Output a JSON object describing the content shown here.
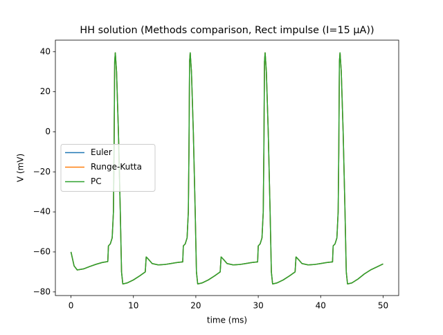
{
  "chart_data": {
    "type": "line",
    "title": "HH solution (Methods comparison, Rect impulse (I=15 μA))",
    "x_label": "time (ms)",
    "y_label": "V (mV)",
    "x": [
      0,
      0.5,
      1,
      2,
      3,
      4,
      5,
      5.9,
      6,
      6.3,
      6.6,
      6.8,
      6.9,
      7,
      7.1,
      7.3,
      7.6,
      7.9,
      8.1,
      8.3,
      9,
      10,
      11,
      11.9,
      12.05,
      12.5,
      13,
      14,
      15,
      16,
      17,
      17.9,
      18,
      18.3,
      18.6,
      18.8,
      18.9,
      19,
      19.1,
      19.3,
      19.6,
      19.9,
      20.1,
      20.3,
      21,
      22,
      23,
      23.9,
      24.05,
      24.5,
      25,
      26,
      27,
      28,
      29,
      29.9,
      30,
      30.3,
      30.6,
      30.8,
      30.9,
      31,
      31.1,
      31.3,
      31.6,
      31.9,
      32.1,
      32.3,
      33,
      34,
      35,
      35.9,
      36.05,
      36.5,
      37,
      38,
      39,
      40,
      41,
      41.9,
      42,
      42.3,
      42.6,
      42.8,
      42.9,
      43,
      43.1,
      43.3,
      43.6,
      43.9,
      44.1,
      44.3,
      45,
      46,
      47,
      48,
      49,
      50
    ],
    "series": [
      {
        "name": "Euler",
        "color": "#1f77b4",
        "values": [
          -60,
          -67,
          -69,
          -68.5,
          -67.3,
          -66.2,
          -65.3,
          -64.8,
          -57,
          -56,
          -53,
          -40,
          -10,
          35,
          39.5,
          30,
          0,
          -40,
          -70,
          -76,
          -75.5,
          -74,
          -72,
          -70,
          -62.5,
          -64,
          -65.8,
          -66.5,
          -66.3,
          -65.8,
          -65.3,
          -65,
          -57,
          -56,
          -53,
          -40,
          -10,
          35,
          39.5,
          30,
          0,
          -40,
          -70,
          -76,
          -75.5,
          -74,
          -72,
          -70,
          -62.5,
          -64,
          -65.8,
          -66.5,
          -66.3,
          -65.8,
          -65.3,
          -65,
          -57,
          -56,
          -53,
          -40,
          -10,
          35,
          39.5,
          30,
          0,
          -40,
          -70,
          -76,
          -75.5,
          -74,
          -72,
          -70,
          -62.5,
          -64,
          -65.8,
          -66.5,
          -66.3,
          -65.8,
          -65.3,
          -65,
          -57,
          -56,
          -53,
          -40,
          -10,
          35,
          39.5,
          30,
          0,
          -40,
          -70,
          -76,
          -75.5,
          -73.5,
          -71,
          -69,
          -67.5,
          -66
        ]
      },
      {
        "name": "Runge-Kutta",
        "color": "#ff7f0e",
        "values": [
          -60,
          -67,
          -69,
          -68.5,
          -67.3,
          -66.2,
          -65.3,
          -64.8,
          -57,
          -56,
          -53,
          -40,
          -10,
          35,
          39.5,
          30,
          0,
          -40,
          -70,
          -76,
          -75.5,
          -74,
          -72,
          -70,
          -62.5,
          -64,
          -65.8,
          -66.5,
          -66.3,
          -65.8,
          -65.3,
          -65,
          -57,
          -56,
          -53,
          -40,
          -10,
          35,
          39.5,
          30,
          0,
          -40,
          -70,
          -76,
          -75.5,
          -74,
          -72,
          -70,
          -62.5,
          -64,
          -65.8,
          -66.5,
          -66.3,
          -65.8,
          -65.3,
          -65,
          -57,
          -56,
          -53,
          -40,
          -10,
          35,
          39.5,
          30,
          0,
          -40,
          -70,
          -76,
          -75.5,
          -74,
          -72,
          -70,
          -62.5,
          -64,
          -65.8,
          -66.5,
          -66.3,
          -65.8,
          -65.3,
          -65,
          -57,
          -56,
          -53,
          -40,
          -10,
          35,
          39.5,
          30,
          0,
          -40,
          -70,
          -76,
          -75.5,
          -73.5,
          -71,
          -69,
          -67.5,
          -66
        ]
      },
      {
        "name": "PC",
        "color": "#2ca02c",
        "values": [
          -60,
          -67,
          -69,
          -68.5,
          -67.3,
          -66.2,
          -65.3,
          -64.8,
          -57,
          -56,
          -53,
          -40,
          -10,
          35,
          39.5,
          30,
          0,
          -40,
          -70,
          -76,
          -75.5,
          -74,
          -72,
          -70,
          -62.5,
          -64,
          -65.8,
          -66.5,
          -66.3,
          -65.8,
          -65.3,
          -65,
          -57,
          -56,
          -53,
          -40,
          -10,
          35,
          39.5,
          30,
          0,
          -40,
          -70,
          -76,
          -75.5,
          -74,
          -72,
          -70,
          -62.5,
          -64,
          -65.8,
          -66.5,
          -66.3,
          -65.8,
          -65.3,
          -65,
          -57,
          -56,
          -53,
          -40,
          -10,
          35,
          39.5,
          30,
          0,
          -40,
          -70,
          -76,
          -75.5,
          -74,
          -72,
          -70,
          -62.5,
          -64,
          -65.8,
          -66.5,
          -66.3,
          -65.8,
          -65.3,
          -65,
          -57,
          -56,
          -53,
          -40,
          -10,
          35,
          39.5,
          30,
          0,
          -40,
          -70,
          -76,
          -75.5,
          -73.5,
          -71,
          -69,
          -67.5,
          -66
        ]
      }
    ],
    "xlim": [
      -2.5,
      52.5
    ],
    "xticks": [
      0,
      10,
      20,
      30,
      40,
      50
    ],
    "ylim": [
      -81.8,
      45.8
    ],
    "yticks": [
      {
        "value": -80,
        "label": "−80"
      },
      {
        "value": -60,
        "label": "−60"
      },
      {
        "value": -40,
        "label": "−40"
      },
      {
        "value": -20,
        "label": "−20"
      },
      0,
      20,
      40
    ],
    "legend": "center left"
  }
}
